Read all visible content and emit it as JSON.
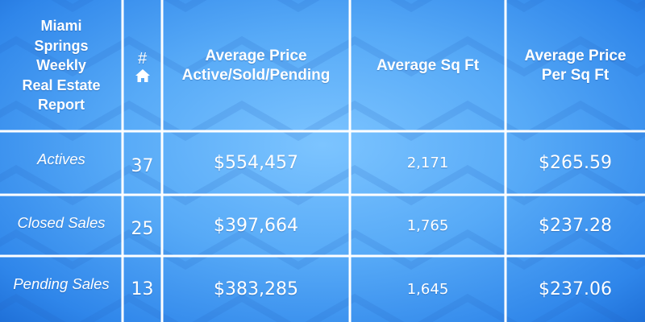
{
  "title": "Miami Springs Weekly Real Estate Report",
  "title_lines": [
    "Miami",
    "Springs",
    "Weekly",
    "Real Estate",
    "Report"
  ],
  "headers": {
    "count_symbol": "#",
    "count_icon": "house-icon",
    "price": "Average Price Active/Sold/Pending",
    "sqft": "Average Sq Ft",
    "price_per_sqft": "Average Price Per Sq Ft"
  },
  "rows": [
    {
      "label": "Actives",
      "count": "37",
      "avg_price": "$554,457",
      "avg_sqft": "2,171",
      "price_per_sqft": "$265.59"
    },
    {
      "label": "Closed Sales",
      "count": "25",
      "avg_price": "$397,664",
      "avg_sqft": "1,765",
      "price_per_sqft": "$237.28"
    },
    {
      "label": "Pending Sales",
      "count": "13",
      "avg_price": "$383,285",
      "avg_sqft": "1,645",
      "price_per_sqft": "$237.06"
    }
  ],
  "colors": {
    "background": "#57aaf7",
    "grid_lines": "#ffffff",
    "text": "#ffffff"
  }
}
